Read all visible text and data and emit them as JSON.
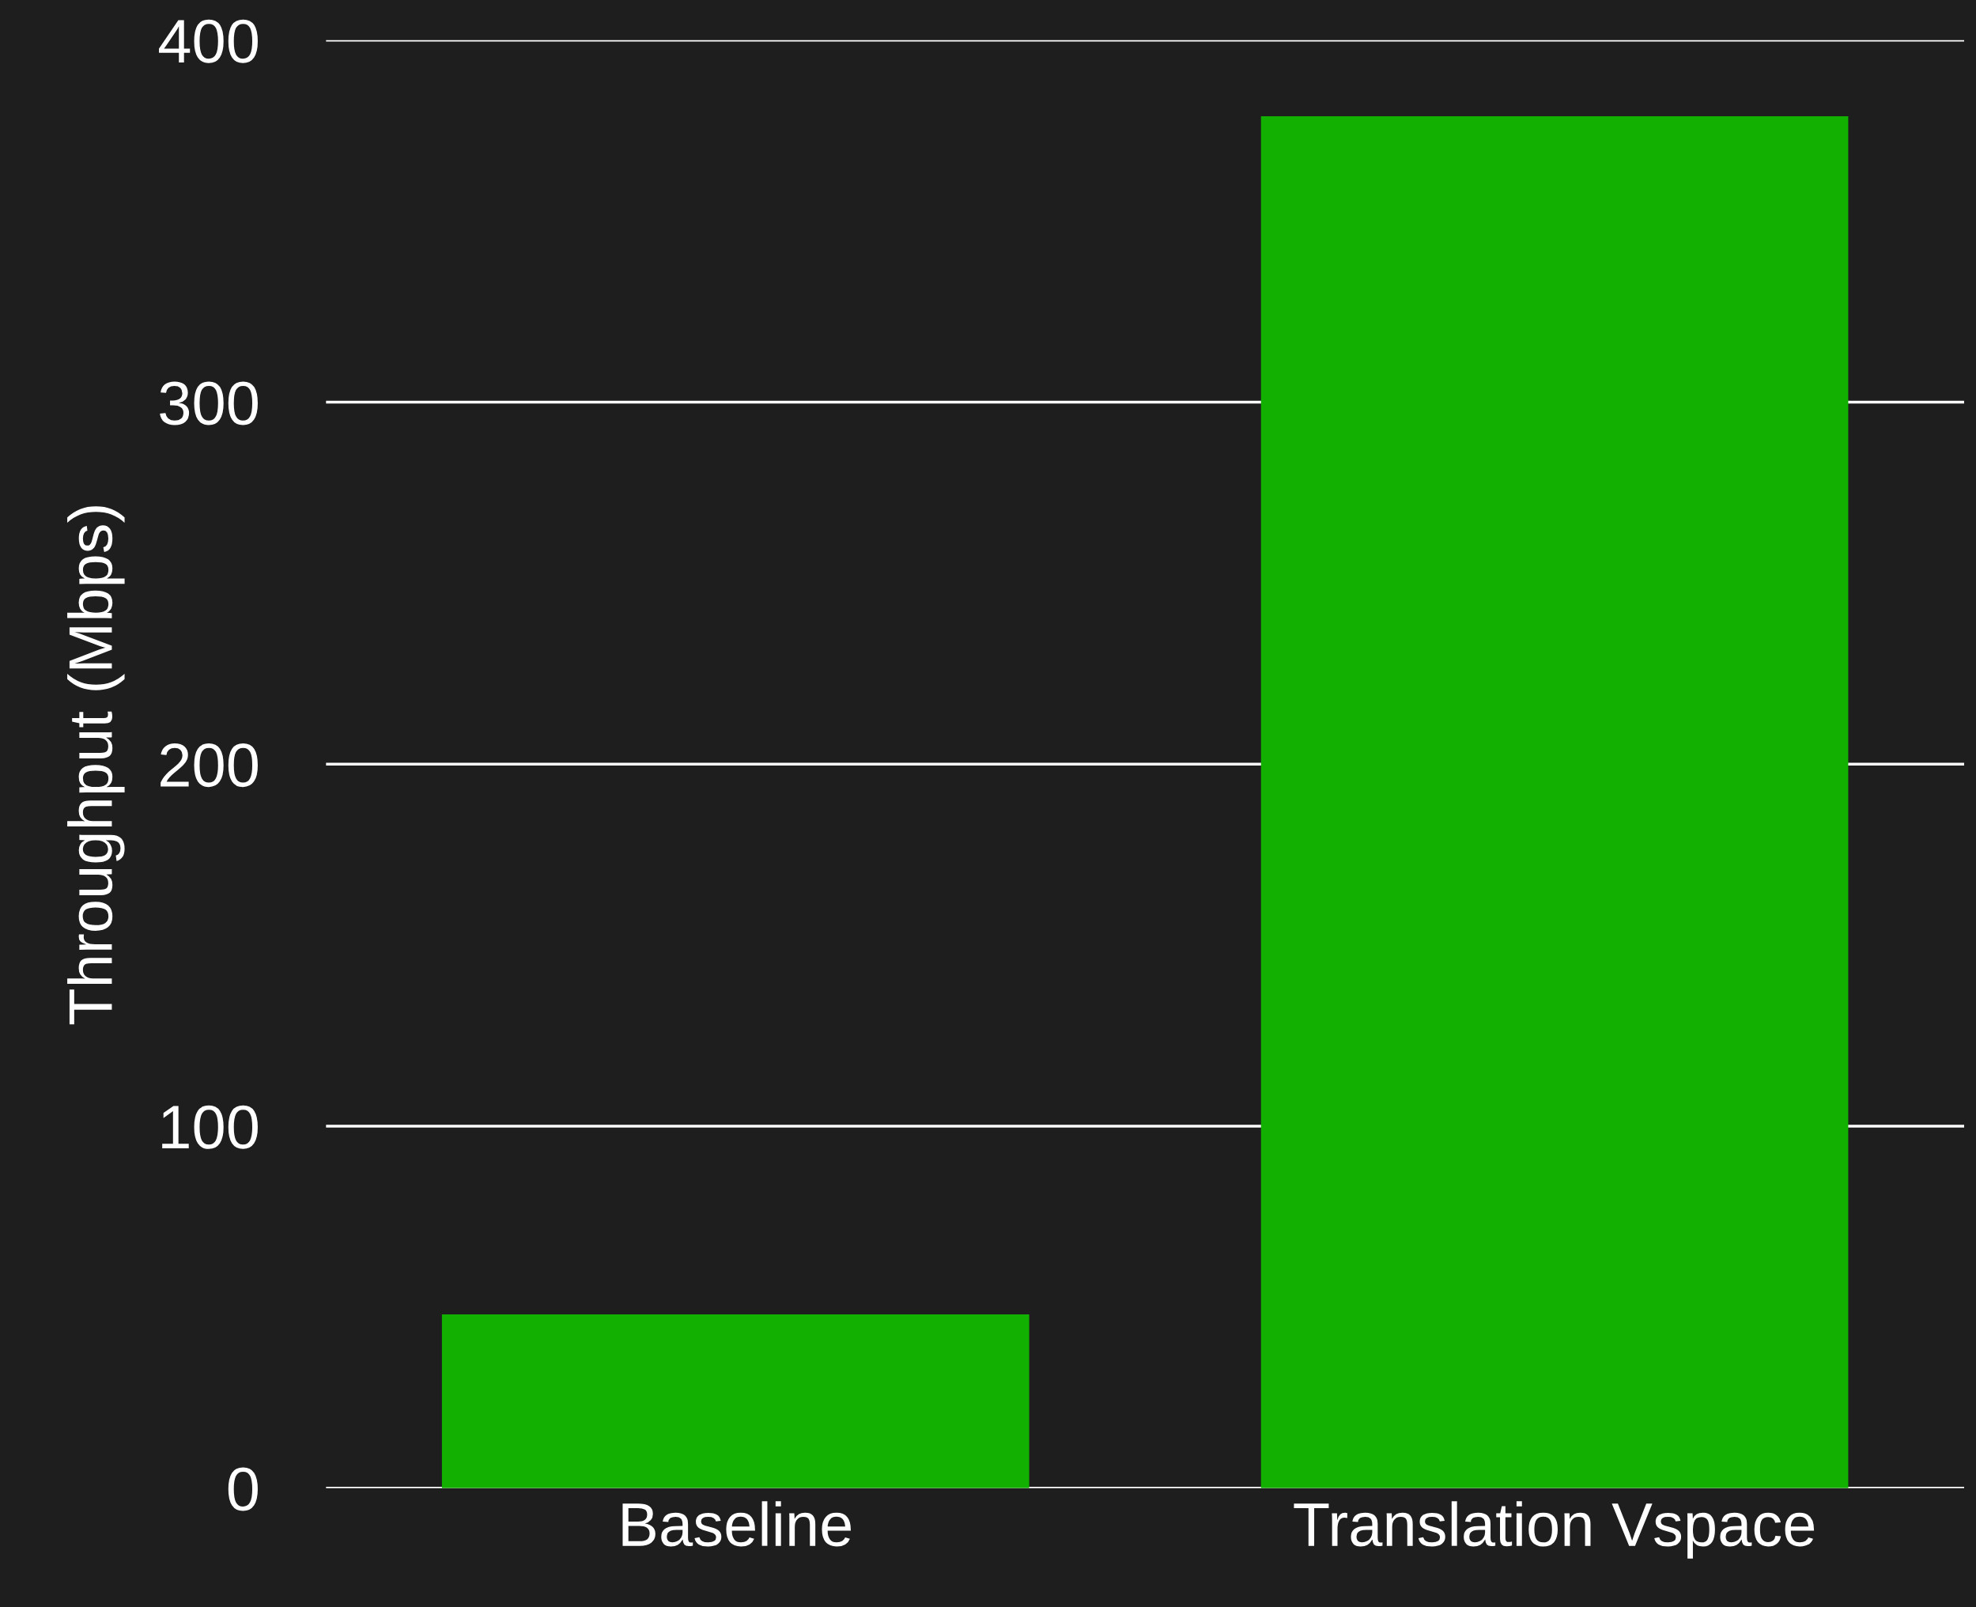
{
  "chart_data": {
    "type": "bar",
    "ylabel": "Throughput (Mbps)",
    "categories": [
      "Baseline",
      "Translation Vspace"
    ],
    "values": [
      48,
      379
    ],
    "color": "#12b000",
    "ylim": [
      0,
      400
    ],
    "yticks": [
      0,
      100,
      200,
      300,
      400
    ],
    "grid": "y"
  }
}
